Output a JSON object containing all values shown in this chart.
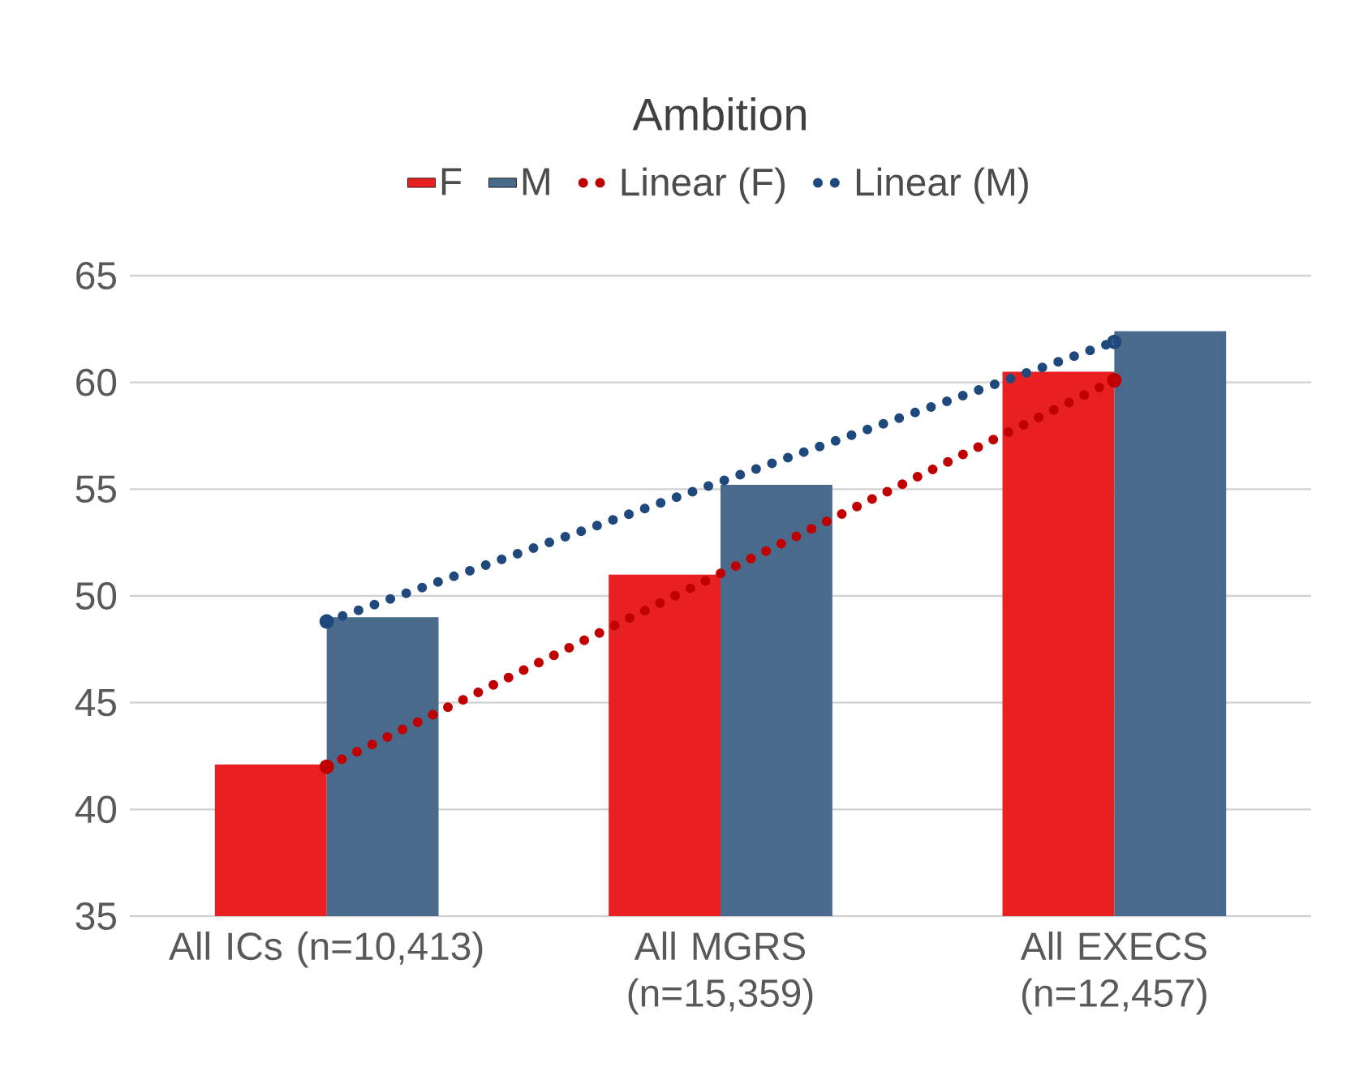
{
  "chart_data": {
    "type": "bar",
    "title": "Ambition",
    "categories": [
      "All ICs (n=10,413)",
      "All MGRS (n=15,359)",
      "All EXECS (n=12,457)"
    ],
    "series": [
      {
        "name": "F",
        "color": "#e82022",
        "values": [
          42.1,
          51.0,
          60.5
        ]
      },
      {
        "name": "M",
        "color": "#4a6a8c",
        "values": [
          49.0,
          55.2,
          62.4
        ]
      },
      {
        "name": "Linear (F)",
        "type": "line",
        "line_style": "dotted",
        "color": "#c00000",
        "values": [
          42.0,
          51.05,
          60.1
        ]
      },
      {
        "name": "Linear (M)",
        "type": "line",
        "line_style": "dotted",
        "color": "#1f497d",
        "values": [
          48.8,
          55.35,
          61.9
        ]
      }
    ],
    "ylim": [
      35,
      65
    ],
    "yticks": [
      35,
      40,
      45,
      50,
      55,
      60,
      65
    ],
    "grid": "y",
    "legend": "top"
  }
}
